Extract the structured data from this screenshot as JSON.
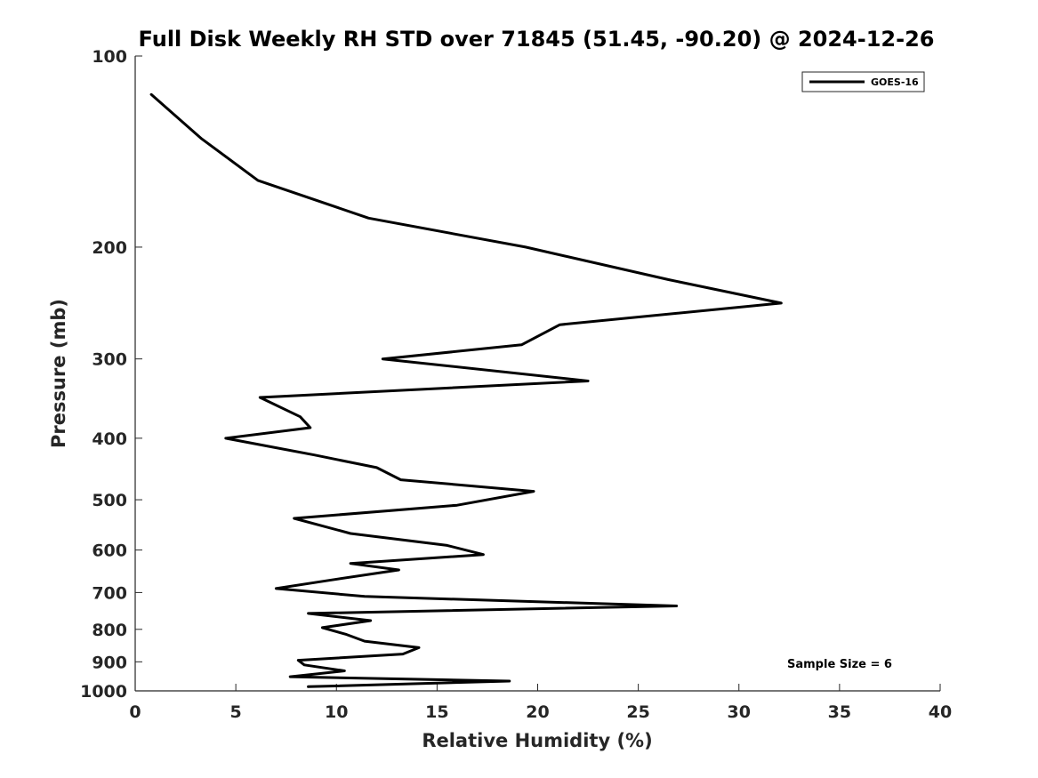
{
  "chart_data": {
    "type": "line",
    "title": "Full Disk Weekly RH STD over 71845 (51.45, -90.20) @ 2024-12-26",
    "xlabel": "Relative Humidity (%)",
    "ylabel": "Pressure (mb)",
    "xlim": [
      0,
      40
    ],
    "ylim": [
      100,
      1000
    ],
    "yscale": "log",
    "y_reversed": true,
    "x_ticks": [
      0,
      5,
      10,
      15,
      20,
      25,
      30,
      35,
      40
    ],
    "y_ticks": [
      100,
      200,
      300,
      400,
      500,
      600,
      700,
      800,
      900,
      1000
    ],
    "grid": false,
    "legend_position": "top-right",
    "series": [
      {
        "name": "GOES-16",
        "color": "#000000",
        "x": [
          0.8,
          3.3,
          6.1,
          11.6,
          19.4,
          26.5,
          32.1,
          21.1,
          19.2,
          12.3,
          22.5,
          6.2,
          8.2,
          8.7,
          4.5,
          8.9,
          12.0,
          13.2,
          19.8,
          16.0,
          7.9,
          10.7,
          15.5,
          17.3,
          10.7,
          13.1,
          9.6,
          7.0,
          11.4,
          26.9,
          8.6,
          11.7,
          9.3,
          10.5,
          11.4,
          14.1,
          13.3,
          8.1,
          8.4,
          10.4,
          7.7,
          18.6,
          8.6
        ],
        "y": [
          115,
          135,
          157,
          180,
          200,
          225,
          245,
          265,
          285,
          300,
          325,
          345,
          370,
          385,
          400,
          425,
          445,
          465,
          485,
          510,
          535,
          565,
          590,
          610,
          630,
          645,
          670,
          690,
          710,
          735,
          755,
          775,
          795,
          815,
          835,
          855,
          875,
          895,
          910,
          930,
          950,
          965,
          985
        ]
      }
    ],
    "annotation": "Sample Size = 6"
  }
}
